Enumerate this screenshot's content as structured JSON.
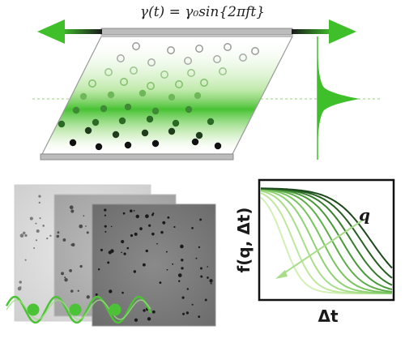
{
  "equation": "γ(t) = γ₀sin{2πft}",
  "plot": {
    "y_label": "f(q, Δt)",
    "x_label": "Δt",
    "arrow_label": "q"
  },
  "colors": {
    "accent_green": "#3fbf2a",
    "dark_green": "#2e7d32",
    "light_green": "#b6e59a",
    "plate_gray": "#b8b8b8",
    "particle_dark": "#111111"
  },
  "icons": [
    "double-headed-shear-arrow",
    "gaussian-profile",
    "sinusoidal-wave",
    "curved-arrow"
  ]
}
